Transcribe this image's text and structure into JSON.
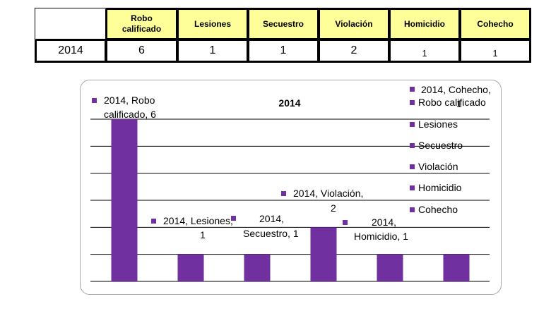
{
  "table": {
    "headers": [
      "Robo\ncalificado",
      "Lesiones",
      "Secuestro",
      "Violación",
      "Homicidio",
      "Cohecho"
    ],
    "row_label": "2014",
    "values": [
      "6",
      "1",
      "1",
      "2",
      "1",
      "1"
    ]
  },
  "chart_data": {
    "type": "bar",
    "title": "2014",
    "categories": [
      "Robo calificado",
      "Lesiones",
      "Secuestro",
      "Violación",
      "Homicidio",
      "Cohecho"
    ],
    "series": [
      {
        "name": "2014",
        "values": [
          6,
          1,
          1,
          2,
          1,
          1
        ]
      }
    ],
    "ylim": [
      0,
      6
    ],
    "grid": true,
    "bar_color": "#7030a0",
    "legend_marker_color": "#7030a0",
    "legend_position": "right",
    "legend": [
      "Robo calificado",
      "Lesiones",
      "Secuestro",
      "Violación",
      "Homicidio",
      "Cohecho"
    ],
    "data_labels": [
      [
        "2014, Robo",
        "calificado, 6"
      ],
      [
        "2014, Lesiones,",
        "1"
      ],
      [
        "2014,",
        "Secuestro, 1"
      ],
      [
        "2014, Violación,",
        "2"
      ],
      [
        "2014,",
        "Homicidio, 1"
      ],
      [
        "2014, Cohecho,",
        "1"
      ]
    ]
  }
}
